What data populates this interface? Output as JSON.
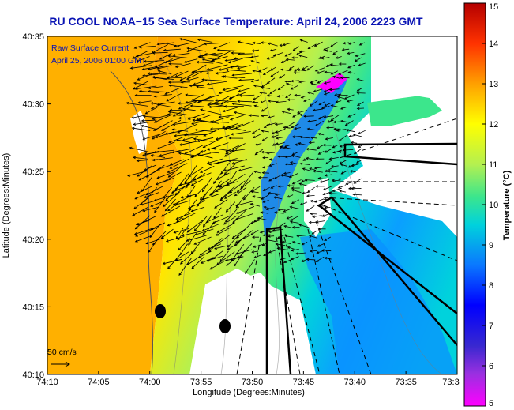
{
  "title": "RU COOL  NOAA−15  Sea Surface Temperature:  April 24, 2006 2223 GMT",
  "legend": {
    "line1": "Raw Surface Current",
    "line2": "April 25, 2006 01:00 GMT"
  },
  "scale_label": "50 cm/s",
  "axes": {
    "xlabel": "Longitude (Degrees:Minutes)",
    "ylabel": "Latitude (Degrees:Minutes)",
    "x_ticks": [
      "74:10",
      "74:05",
      "74:00",
      "73:55",
      "73:50",
      "73:45",
      "73:40",
      "73:35",
      "73:3"
    ],
    "y_ticks": [
      "40:35",
      "40:30",
      "40:25",
      "40:20",
      "40:15",
      "40:10"
    ]
  },
  "colorbar": {
    "label": "Temperature (°C)",
    "ticks": [
      "15",
      "14",
      "13",
      "12",
      "11",
      "10",
      "9",
      "8",
      "7",
      "6",
      "5"
    ],
    "range": [
      5,
      15
    ],
    "colors": [
      "#ff00ff",
      "#4b2dc8",
      "#0000ff",
      "#0a78ff",
      "#00d2dc",
      "#3ce68c",
      "#b4f050",
      "#ffff00",
      "#ffa000",
      "#ff3200",
      "#b40000"
    ]
  }
}
